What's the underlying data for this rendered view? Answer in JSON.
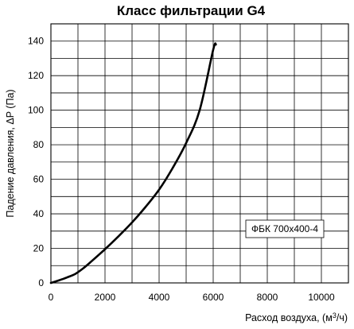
{
  "chart_data": {
    "type": "line",
    "title": "Класс фильтрации G4",
    "xlabel": "Расход воздуха, (м",
    "xlabel_sup": "3",
    "xlabel_tail": "/ч)",
    "ylabel": "Падение давления, ΔP (Па)",
    "xlim": [
      0,
      11000
    ],
    "ylim": [
      0,
      150
    ],
    "xticks": [
      0,
      2000,
      4000,
      6000,
      8000,
      10000
    ],
    "yticks": [
      0,
      20,
      40,
      60,
      80,
      100,
      120,
      140
    ],
    "grid": true,
    "legend_position": "lower-right",
    "series": [
      {
        "name": "ФБК 700x400-4",
        "x": [
          0,
          300,
          600,
          900,
          1200,
          1500,
          2000,
          2500,
          3000,
          3500,
          4000,
          4500,
          5000,
          5500,
          6000,
          6100
        ],
        "y": [
          0,
          1.5,
          3.2,
          5.2,
          8.5,
          12.5,
          19.5,
          27,
          35,
          44,
          54,
          66.5,
          81,
          100,
          135,
          138
        ]
      }
    ]
  }
}
